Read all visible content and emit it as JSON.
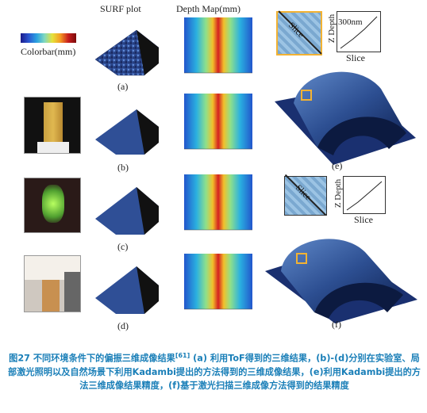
{
  "headers": {
    "surf": "SURF plot",
    "depth": "Depth Map(mm)",
    "colorbar": "Colorbar(mm)"
  },
  "labels": {
    "a": "(a)",
    "b": "(b)",
    "c": "(c)",
    "d": "(d)",
    "e": "(e)",
    "f": "(f)"
  },
  "inset_e": {
    "slice": "Slice",
    "zdepth": "Z Depth",
    "scale": "300nm",
    "xaxis": "Slice"
  },
  "inset_f": {
    "slice": "Slice",
    "zdepth": "Z Depth",
    "xaxis": "Slice"
  },
  "caption": {
    "prefix": "图27 不同环境条件下的偏振三维成像结果",
    "ref": "[61]",
    "body": " (a) 利用ToF得到的三维结果，(b)-(d)分别在实验室、局部激光照明以及自然场景下利用Kadambi提出的方法得到的三维成像结果，(e)利用Kadambi提出的方法三维成像结果精度，(f)基于激光扫描三维成像方法得到的结果精度"
  },
  "colors": {
    "caption": "#1a7fb8",
    "inset_border": "#f2b233"
  }
}
